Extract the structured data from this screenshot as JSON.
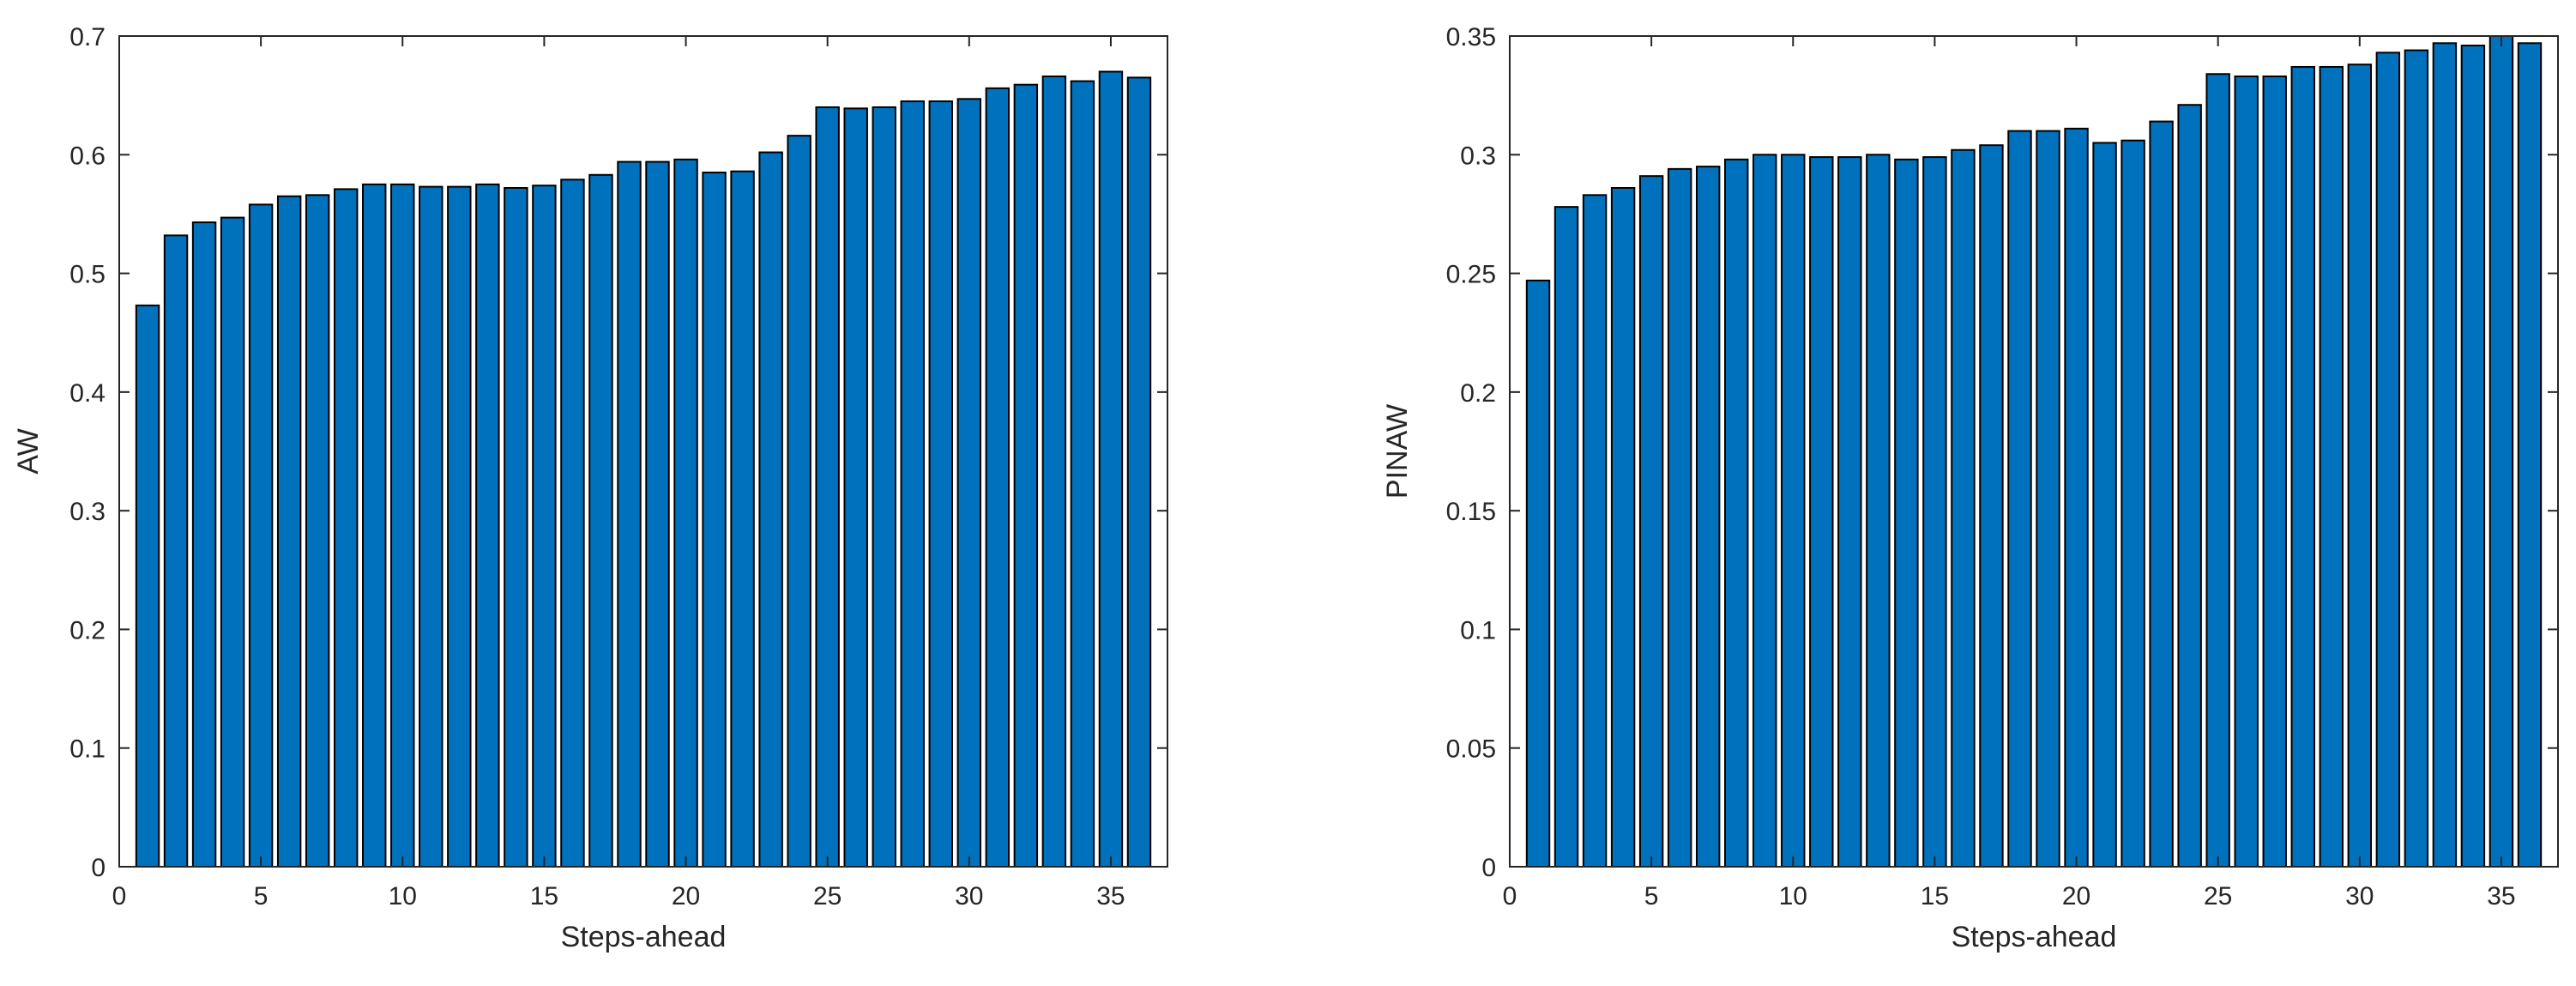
{
  "colors": {
    "bar_fill": "#0072BD",
    "bar_edge": "#000000",
    "axes": "#262626",
    "background": "#ffffff"
  },
  "chart_data": [
    {
      "type": "bar",
      "xlabel": "Steps-ahead",
      "ylabel": "AW",
      "xlim": [
        0,
        37
      ],
      "ylim": [
        0,
        0.7
      ],
      "xticks": [
        0,
        5,
        10,
        15,
        20,
        25,
        30,
        35
      ],
      "yticks": [
        0,
        0.1,
        0.2,
        0.3,
        0.4,
        0.5,
        0.6,
        0.7
      ],
      "ytick_labels": [
        "0",
        "0.1",
        "0.2",
        "0.3",
        "0.4",
        "0.5",
        "0.6",
        "0.7"
      ],
      "grid": false,
      "box": true,
      "x": [
        1,
        2,
        3,
        4,
        5,
        6,
        7,
        8,
        9,
        10,
        11,
        12,
        13,
        14,
        15,
        16,
        17,
        18,
        19,
        20,
        21,
        22,
        23,
        24,
        25,
        26,
        27,
        28,
        29,
        30,
        31,
        32,
        33,
        34,
        35,
        36
      ],
      "values": [
        0.473,
        0.532,
        0.543,
        0.547,
        0.558,
        0.565,
        0.566,
        0.571,
        0.575,
        0.575,
        0.573,
        0.573,
        0.575,
        0.572,
        0.574,
        0.579,
        0.583,
        0.594,
        0.594,
        0.596,
        0.585,
        0.586,
        0.602,
        0.616,
        0.64,
        0.639,
        0.64,
        0.645,
        0.645,
        0.647,
        0.656,
        0.659,
        0.666,
        0.662,
        0.67,
        0.665
      ]
    },
    {
      "type": "bar",
      "xlabel": "Steps-ahead",
      "ylabel": "PINAW",
      "xlim": [
        0,
        37
      ],
      "ylim": [
        0,
        0.35
      ],
      "xticks": [
        0,
        5,
        10,
        15,
        20,
        25,
        30,
        35
      ],
      "yticks": [
        0,
        0.05,
        0.1,
        0.15,
        0.2,
        0.25,
        0.3,
        0.35
      ],
      "ytick_labels": [
        "0",
        "0.05",
        "0.1",
        "0.15",
        "0.2",
        "0.25",
        "0.3",
        "0.35"
      ],
      "grid": false,
      "box": true,
      "x": [
        1,
        2,
        3,
        4,
        5,
        6,
        7,
        8,
        9,
        10,
        11,
        12,
        13,
        14,
        15,
        16,
        17,
        18,
        19,
        20,
        21,
        22,
        23,
        24,
        25,
        26,
        27,
        28,
        29,
        30,
        31,
        32,
        33,
        34,
        35,
        36
      ],
      "values": [
        0.247,
        0.278,
        0.283,
        0.286,
        0.291,
        0.294,
        0.295,
        0.298,
        0.3,
        0.3,
        0.299,
        0.299,
        0.3,
        0.298,
        0.299,
        0.302,
        0.304,
        0.31,
        0.31,
        0.311,
        0.305,
        0.306,
        0.314,
        0.321,
        0.334,
        0.333,
        0.333,
        0.337,
        0.337,
        0.338,
        0.343,
        0.344,
        0.347,
        0.346,
        0.35,
        0.347
      ]
    }
  ]
}
